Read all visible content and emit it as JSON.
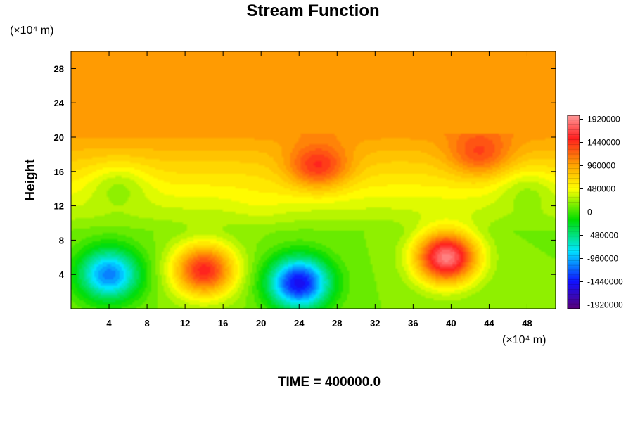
{
  "chart_data": {
    "type": "heatmap",
    "title": "Stream Function",
    "footer": "TIME = 400000.0",
    "ylabel": "Height",
    "xlabel": "",
    "y_unit_label": "(×10⁴ m)",
    "x_unit_label": "(×10⁴ m)",
    "x_range": [
      0,
      51
    ],
    "y_range": [
      0,
      30
    ],
    "x_ticks": [
      "4",
      "8",
      "12",
      "16",
      "20",
      "24",
      "28",
      "32",
      "36",
      "40",
      "44",
      "48"
    ],
    "y_ticks": [
      "4",
      "8",
      "12",
      "16",
      "20",
      "24",
      "28"
    ],
    "colorbar": {
      "range": [
        -2000000,
        2000000
      ],
      "ticks": [
        "1920000",
        "1440000",
        "960000",
        "480000",
        "0",
        "-480000",
        "-960000",
        "-1440000",
        "-1920000"
      ],
      "colors": [
        "#5a007a",
        "#1010ff",
        "#00e5ff",
        "#00dd00",
        "#ffff00",
        "#ffa500",
        "#ff1f1f",
        "#ff9a9a"
      ]
    },
    "features": [
      {
        "x": 4,
        "y": 4,
        "value": -1100000
      },
      {
        "x": 14,
        "y": 4.5,
        "value": 1500000
      },
      {
        "x": 24,
        "y": 3,
        "value": -1500000
      },
      {
        "x": 39.5,
        "y": 6,
        "value": 1900000
      },
      {
        "x": 26,
        "y": 16.5,
        "value": 1450000
      },
      {
        "x": 43,
        "y": 18,
        "value": 1350000
      },
      {
        "x": 5,
        "y": 14.5,
        "value": 250000
      },
      {
        "x": 48,
        "y": 14,
        "value": 250000
      },
      {
        "x": 20,
        "y": 12,
        "value": 450000
      }
    ],
    "grid": false
  }
}
